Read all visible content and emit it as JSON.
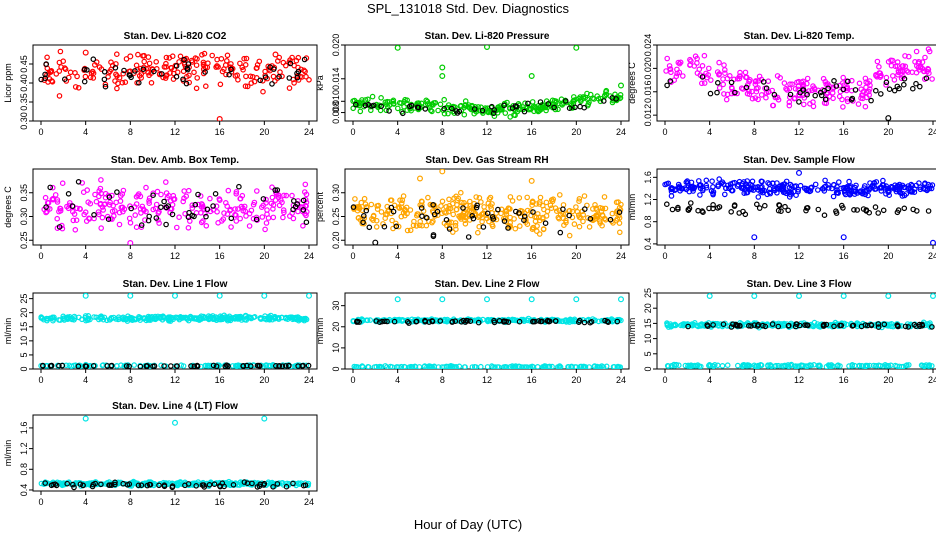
{
  "title": "SPL_131018  Std. Dev. Diagnostics",
  "xlabel": "Hour of Day (UTC)",
  "colors": {
    "red": "#ff0000",
    "green": "#00cc00",
    "magenta": "#ff00ff",
    "orange": "#ffa500",
    "blue": "#0000ff",
    "cyan": "#00e5e5",
    "black": "#000000"
  },
  "chart_data": [
    {
      "type": "scatter",
      "title": "Stan. Dev. Li-820 CO2",
      "ylabel": "Licor ppm",
      "xlim": [
        0,
        24
      ],
      "ylim": [
        0.3,
        0.5
      ],
      "xticks": [
        "0",
        "4",
        "8",
        "12",
        "16",
        "20",
        "24"
      ],
      "yticks": [
        "0.30",
        "0.35",
        "0.40",
        "0.45"
      ],
      "series": [
        {
          "color": "red",
          "base": [
            [
              0,
              0.42
            ],
            [
              6,
              0.43
            ],
            [
              12,
              0.44
            ],
            [
              18,
              0.43
            ],
            [
              24,
              0.43
            ]
          ],
          "spread": 0.03,
          "n": 220,
          "seed": 11
        },
        {
          "color": "black",
          "base": [
            [
              0,
              0.42
            ],
            [
              12,
              0.43
            ],
            [
              24,
              0.43
            ]
          ],
          "spread": 0.025,
          "n": 45,
          "seed": 12
        }
      ],
      "outliers": [
        {
          "color": "red",
          "points": [
            [
              4,
              0.48
            ],
            [
              8,
              0.47
            ],
            [
              16,
              0.302
            ],
            [
              21,
              0.475
            ]
          ]
        }
      ]
    },
    {
      "type": "scatter",
      "title": "Stan. Dev. Li-820 Pressure",
      "ylabel": "kPa",
      "xlim": [
        0,
        24
      ],
      "ylim": [
        0.0065,
        0.02
      ],
      "xticks": [
        "0",
        "4",
        "8",
        "12",
        "16",
        "20",
        "24"
      ],
      "yticks": [
        "0.008",
        "0.010",
        "0.014",
        "0.020"
      ],
      "series": [
        {
          "color": "green",
          "base": [
            [
              0,
              0.0095
            ],
            [
              6,
              0.0093
            ],
            [
              12,
              0.0085
            ],
            [
              15,
              0.0088
            ],
            [
              20,
              0.01
            ],
            [
              24,
              0.0108
            ]
          ],
          "spread": 0.0008,
          "n": 260,
          "seed": 21
        },
        {
          "color": "black",
          "base": [
            [
              0,
              0.0092
            ],
            [
              12,
              0.0083
            ],
            [
              24,
              0.0103
            ]
          ],
          "spread": 0.0006,
          "n": 40,
          "seed": 22
        }
      ],
      "outliers": [
        {
          "color": "green",
          "points": [
            [
              4,
              0.0195
            ],
            [
              8,
              0.0145
            ],
            [
              8,
              0.016
            ],
            [
              12,
              0.0198
            ],
            [
              16,
              0.0145
            ],
            [
              20,
              0.0195
            ],
            [
              24,
              0.0128
            ]
          ]
        }
      ]
    },
    {
      "type": "scatter",
      "title": "Stan. Dev. Li-820 Temp.",
      "ylabel": "degrees C",
      "xlim": [
        0,
        24
      ],
      "ylim": [
        0.011,
        0.024
      ],
      "xticks": [
        "0",
        "4",
        "8",
        "12",
        "16",
        "20",
        "24"
      ],
      "yticks": [
        "0.012",
        "0.016",
        "0.020",
        "0.024"
      ],
      "series": [
        {
          "color": "magenta",
          "base": [
            [
              0,
              0.019
            ],
            [
              3,
              0.021
            ],
            [
              6,
              0.017
            ],
            [
              12,
              0.016
            ],
            [
              18,
              0.016
            ],
            [
              19,
              0.02
            ],
            [
              24,
              0.021
            ]
          ],
          "spread": 0.0018,
          "n": 260,
          "seed": 31
        },
        {
          "color": "black",
          "base": [
            [
              0,
              0.018
            ],
            [
              12,
              0.016
            ],
            [
              18,
              0.016
            ],
            [
              24,
              0.019
            ]
          ],
          "spread": 0.0016,
          "n": 45,
          "seed": 32
        }
      ],
      "outliers": [
        {
          "color": "black",
          "points": [
            [
              20,
              0.0115
            ]
          ]
        }
      ]
    },
    {
      "type": "scatter",
      "title": "Stan. Dev. Amb. Box Temp.",
      "ylabel": "degrees C",
      "xlim": [
        0,
        24
      ],
      "ylim": [
        0.24,
        0.4
      ],
      "xticks": [
        "0",
        "4",
        "8",
        "12",
        "16",
        "20",
        "24"
      ],
      "yticks": [
        "0.25",
        "0.30",
        "0.35"
      ],
      "series": [
        {
          "color": "magenta",
          "base": [
            [
              0,
              0.32
            ],
            [
              12,
              0.32
            ],
            [
              24,
              0.32
            ]
          ],
          "spread": 0.03,
          "n": 260,
          "seed": 41
        },
        {
          "color": "black",
          "base": [
            [
              0,
              0.32
            ],
            [
              24,
              0.32
            ]
          ],
          "spread": 0.03,
          "n": 45,
          "seed": 42
        }
      ],
      "outliers": [
        {
          "color": "magenta",
          "points": [
            [
              8,
              0.243
            ]
          ]
        }
      ]
    },
    {
      "type": "scatter",
      "title": "Stan. Dev. Gas Stream RH",
      "ylabel": "percent",
      "xlim": [
        0,
        24
      ],
      "ylim": [
        0.19,
        0.35
      ],
      "xticks": [
        "0",
        "4",
        "8",
        "12",
        "16",
        "20",
        "24"
      ],
      "yticks": [
        "0.20",
        "0.25",
        "0.30"
      ],
      "series": [
        {
          "color": "orange",
          "base": [
            [
              0,
              0.26
            ],
            [
              12,
              0.255
            ],
            [
              24,
              0.255
            ]
          ],
          "spread": 0.025,
          "n": 340,
          "seed": 51
        },
        {
          "color": "black",
          "base": [
            [
              0,
              0.25
            ],
            [
              24,
              0.25
            ]
          ],
          "spread": 0.025,
          "n": 45,
          "seed": 52
        }
      ],
      "outliers": [
        {
          "color": "orange",
          "points": [
            [
              6,
              0.33
            ],
            [
              8,
              0.345
            ],
            [
              16,
              0.325
            ]
          ]
        },
        {
          "color": "black",
          "points": [
            [
              2,
              0.195
            ]
          ]
        }
      ]
    },
    {
      "type": "scatter",
      "title": "Stan. Dev. Sample Flow",
      "ylabel": "ml/min",
      "xlim": [
        0,
        24
      ],
      "ylim": [
        0.38,
        1.75
      ],
      "xticks": [
        "0",
        "4",
        "8",
        "12",
        "16",
        "20",
        "24"
      ],
      "yticks": [
        "0.4",
        "0.8",
        "1.2",
        "1.6"
      ],
      "series": [
        {
          "color": "blue",
          "base": [
            [
              0,
              1.4
            ],
            [
              24,
              1.4
            ]
          ],
          "spread": 0.09,
          "n": 300,
          "seed": 61
        },
        {
          "color": "black",
          "base": [
            [
              0,
              1.05
            ],
            [
              24,
              1.0
            ]
          ],
          "spread": 0.07,
          "n": 55,
          "seed": 62
        }
      ],
      "outliers": [
        {
          "color": "blue",
          "points": [
            [
              8,
              0.52
            ],
            [
              16,
              0.52
            ],
            [
              24,
              0.42
            ],
            [
              12,
              1.68
            ]
          ]
        }
      ]
    },
    {
      "type": "scatter",
      "title": "Stan. Dev. Line 1 Flow",
      "ylabel": "ml/min",
      "xlim": [
        0,
        24
      ],
      "ylim": [
        0,
        27
      ],
      "xticks": [
        "0",
        "4",
        "8",
        "12",
        "16",
        "20",
        "24"
      ],
      "yticks": [
        "0",
        "5",
        "10",
        "15",
        "20",
        "25"
      ],
      "series": [
        {
          "color": "cyan",
          "base": [
            [
              0,
              18
            ],
            [
              24,
              18
            ]
          ],
          "spread": 0.6,
          "n": 280,
          "seed": 71
        },
        {
          "color": "cyan",
          "base": [
            [
              0,
              1.2
            ],
            [
              24,
              1.2
            ]
          ],
          "spread": 0.2,
          "n": 120,
          "seed": 72
        },
        {
          "color": "black",
          "base": [
            [
              0,
              1.1
            ],
            [
              24,
              1.1
            ]
          ],
          "spread": 0.15,
          "n": 55,
          "seed": 73
        }
      ],
      "outliers": [
        {
          "color": "cyan",
          "points": [
            [
              4,
              26
            ],
            [
              8,
              26
            ],
            [
              12,
              26
            ],
            [
              16,
              26
            ],
            [
              20,
              26
            ],
            [
              24,
              26
            ]
          ]
        }
      ]
    },
    {
      "type": "scatter",
      "title": "Stan. Dev. Line 2 Flow",
      "ylabel": "ml/min",
      "xlim": [
        0,
        24
      ],
      "ylim": [
        0,
        36
      ],
      "xticks": [
        "0",
        "4",
        "8",
        "12",
        "16",
        "20",
        "24"
      ],
      "yticks": [
        "0",
        "10",
        "20",
        "30"
      ],
      "series": [
        {
          "color": "cyan",
          "base": [
            [
              0,
              23
            ],
            [
              24,
              23
            ]
          ],
          "spread": 0.5,
          "n": 240,
          "seed": 81
        },
        {
          "color": "cyan",
          "base": [
            [
              0,
              1.0
            ],
            [
              24,
              1.0
            ]
          ],
          "spread": 0.3,
          "n": 140,
          "seed": 82
        },
        {
          "color": "black",
          "base": [
            [
              0,
              22.5
            ],
            [
              24,
              22.5
            ]
          ],
          "spread": 0.4,
          "n": 60,
          "seed": 83
        }
      ],
      "outliers": [
        {
          "color": "cyan",
          "points": [
            [
              4,
              33
            ],
            [
              8,
              33
            ],
            [
              12,
              33
            ],
            [
              16,
              33
            ],
            [
              20,
              33
            ],
            [
              24,
              33
            ]
          ]
        }
      ]
    },
    {
      "type": "scatter",
      "title": "Stan. Dev. Line 3 Flow",
      "ylabel": "ml/min",
      "xlim": [
        0,
        24
      ],
      "ylim": [
        0,
        25
      ],
      "xticks": [
        "0",
        "4",
        "8",
        "12",
        "16",
        "20",
        "24"
      ],
      "yticks": [
        "0",
        "5",
        "10",
        "15",
        "20",
        "25"
      ],
      "series": [
        {
          "color": "cyan",
          "base": [
            [
              0,
              14.5
            ],
            [
              24,
              14.5
            ]
          ],
          "spread": 0.5,
          "n": 240,
          "seed": 91
        },
        {
          "color": "cyan",
          "base": [
            [
              0,
              1.1
            ],
            [
              24,
              1.1
            ]
          ],
          "spread": 0.25,
          "n": 140,
          "seed": 92
        },
        {
          "color": "black",
          "base": [
            [
              0,
              14.3
            ],
            [
              24,
              14.3
            ]
          ],
          "spread": 0.35,
          "n": 60,
          "seed": 93
        }
      ],
      "outliers": [
        {
          "color": "cyan",
          "points": [
            [
              4,
              24
            ],
            [
              8,
              24
            ],
            [
              12,
              24
            ],
            [
              16,
              24
            ],
            [
              20,
              24
            ],
            [
              24,
              24
            ]
          ]
        }
      ]
    },
    {
      "type": "scatter",
      "title": "Stan. Dev. Line 4 (LT) Flow",
      "ylabel": "ml/min",
      "xlim": [
        0,
        24
      ],
      "ylim": [
        0.38,
        1.85
      ],
      "xticks": [
        "0",
        "4",
        "8",
        "12",
        "16",
        "20",
        "24"
      ],
      "yticks": [
        "0.4",
        "0.8",
        "1.2",
        "1.6"
      ],
      "series": [
        {
          "color": "cyan",
          "base": [
            [
              0,
              0.52
            ],
            [
              24,
              0.52
            ]
          ],
          "spread": 0.025,
          "n": 280,
          "seed": 101
        },
        {
          "color": "black",
          "base": [
            [
              0,
              0.5
            ],
            [
              24,
              0.5
            ]
          ],
          "spread": 0.03,
          "n": 60,
          "seed": 102
        }
      ],
      "outliers": [
        {
          "color": "cyan",
          "points": [
            [
              4,
              1.78
            ],
            [
              12,
              1.7
            ],
            [
              20,
              1.78
            ]
          ]
        }
      ]
    }
  ]
}
